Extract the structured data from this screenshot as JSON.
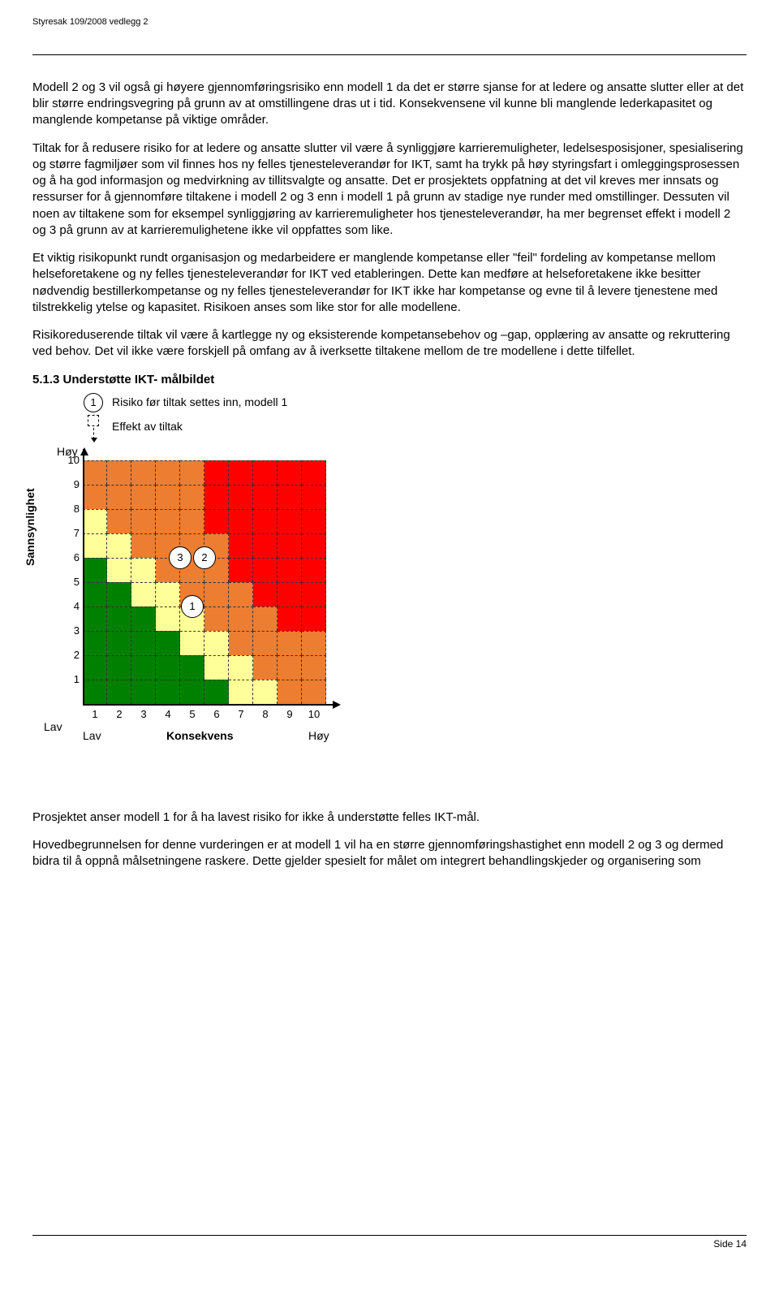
{
  "header": "Styresak 109/2008 vedlegg 2",
  "paragraphs": {
    "p1": "Modell 2 og 3 vil også gi høyere gjennomføringsrisiko enn modell 1 da det er større sjanse for at ledere og ansatte slutter eller at det blir større endringsvegring på grunn av at omstillingene dras ut i tid. Konsekvensene vil kunne bli manglende lederkapasitet og manglende kompetanse på viktige områder.",
    "p2": "Tiltak for å redusere risiko for at ledere og ansatte slutter vil være å synliggjøre karrieremuligheter, ledelsesposisjoner, spesialisering og større fagmiljøer som vil finnes hos ny felles tjenesteleverandør for IKT, samt ha trykk på høy styringsfart i omleggingsprosessen og å ha god informasjon og medvirkning av tillitsvalgte og ansatte. Det er prosjektets oppfatning at det vil kreves mer innsats og ressurser for å gjennomføre tiltakene i modell 2 og 3 enn i modell 1 på grunn av stadige nye runder med omstillinger. Dessuten vil noen av tiltakene som for eksempel synliggjøring av karrieremuligheter hos tjenesteleverandør, ha mer begrenset effekt i modell 2 og 3 på grunn av at karrieremulighetene ikke vil oppfattes som like.",
    "p3": "Et viktig risikopunkt rundt organisasjon og medarbeidere er manglende kompetanse eller \"feil\" fordeling av kompetanse mellom helseforetakene og ny felles tjenesteleverandør for IKT ved etableringen. Dette kan medføre at helseforetakene ikke besitter nødvendig bestillerkompetanse og ny felles tjenesteleverandør for IKT ikke har kompetanse og evne til å levere tjenestene med tilstrekkelig ytelse og kapasitet. Risikoen anses som like stor for alle modellene.",
    "p4": "Risikoreduserende tiltak vil være å kartlegge ny og eksisterende kompetansebehov og –gap, opplæring av ansatte og rekruttering ved behov. Det vil ikke være forskjell på omfang av å iverksette tiltakene mellom de tre modellene i dette tilfellet.",
    "p5": "Prosjektet anser modell 1 for å ha lavest risiko for ikke å understøtte felles IKT-mål.",
    "p6": "Hovedbegrunnelsen for denne vurderingen er at modell 1 vil ha en større gjennomføringshastighet enn modell 2 og 3 og dermed bidra til å oppnå målsetningene raskere. Dette gjelder spesielt for målet om integrert behandlingskjeder og organisering som"
  },
  "section_title": "5.1.3 Understøtte IKT- målbildet",
  "legend": {
    "one": "1",
    "text1": "Risiko før tiltak settes inn, modell 1",
    "text2": "Effekt av tiltak"
  },
  "chart": {
    "y_high": "Høy",
    "y_low": "Lav",
    "x_low": "Lav",
    "x_high": "Høy",
    "y_title": "Sannsynlighet",
    "x_title": "Konsekvens",
    "yticks": [
      "10",
      "9",
      "8",
      "7",
      "6",
      "5",
      "4",
      "3",
      "2",
      "1"
    ],
    "xticks": [
      "1",
      "2",
      "3",
      "4",
      "5",
      "6",
      "7",
      "8",
      "9",
      "10"
    ],
    "markers": {
      "m1": "1",
      "m2": "2",
      "m3": "3"
    },
    "rows": [
      [
        "co",
        "co",
        "co",
        "co",
        "co",
        "cr",
        "cr",
        "cr",
        "cr",
        "cr"
      ],
      [
        "co",
        "co",
        "co",
        "co",
        "co",
        "cr",
        "cr",
        "cr",
        "cr",
        "cr"
      ],
      [
        "cy",
        "co",
        "co",
        "co",
        "co",
        "cr",
        "cr",
        "cr",
        "cr",
        "cr"
      ],
      [
        "cy",
        "cy",
        "co",
        "co",
        "co",
        "co",
        "cr",
        "cr",
        "cr",
        "cr"
      ],
      [
        "cg",
        "cy",
        "cy",
        "co",
        "co",
        "co",
        "cr",
        "cr",
        "cr",
        "cr"
      ],
      [
        "cg",
        "cg",
        "cy",
        "cy",
        "co",
        "co",
        "co",
        "cr",
        "cr",
        "cr"
      ],
      [
        "cg",
        "cg",
        "cg",
        "cy",
        "cy",
        "co",
        "co",
        "co",
        "cr",
        "cr"
      ],
      [
        "cg",
        "cg",
        "cg",
        "cg",
        "cy",
        "cy",
        "co",
        "co",
        "co",
        "co"
      ],
      [
        "cg",
        "cg",
        "cg",
        "cg",
        "cg",
        "cy",
        "cy",
        "co",
        "co",
        "co"
      ],
      [
        "cg",
        "cg",
        "cg",
        "cg",
        "cg",
        "cg",
        "cy",
        "cy",
        "co",
        "co"
      ]
    ]
  },
  "footer": "Side 14"
}
